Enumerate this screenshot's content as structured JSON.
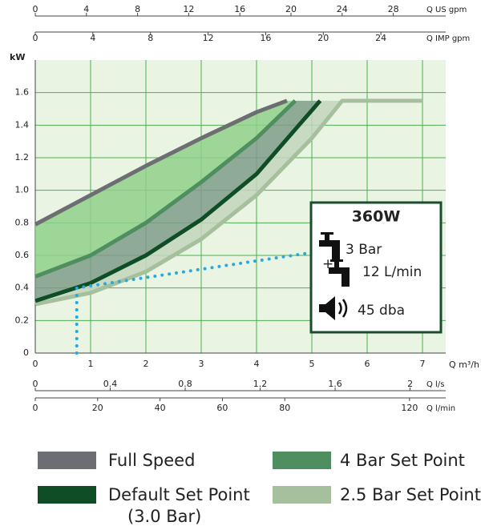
{
  "chart_data": {
    "type": "line",
    "ylabel": "kW",
    "xlabel": "Q m³/h",
    "xlim": [
      0,
      7.42
    ],
    "ylim": [
      0,
      1.8
    ],
    "xticks": [
      0,
      1,
      2,
      3,
      4,
      5,
      6,
      7
    ],
    "yticks": [
      0,
      0.2,
      0.4,
      0.6,
      0.8,
      {
        "value": 1,
        "label": "1.0"
      },
      1.2,
      1.4,
      1.6
    ],
    "grid": true,
    "series": [
      {
        "name": "Full Speed",
        "color": "#6d6e71",
        "x": [
          0,
          1,
          2,
          3,
          4,
          4.55
        ],
        "values": [
          0.79,
          0.97,
          1.15,
          1.32,
          1.48,
          1.55
        ]
      },
      {
        "name": "4 Bar Set Point",
        "color": "#4f8f5f",
        "x": [
          0,
          1,
          2,
          3,
          4,
          4.7
        ],
        "values": [
          0.47,
          0.6,
          0.8,
          1.05,
          1.32,
          1.55
        ]
      },
      {
        "name": "Default Set Point",
        "name_note": "(3.0 Bar)",
        "color": "#0f4d26",
        "x": [
          0,
          1,
          2,
          3,
          4,
          5.15
        ],
        "values": [
          0.32,
          0.43,
          0.6,
          0.82,
          1.1,
          1.55
        ]
      },
      {
        "name": "2.5 Bar Set Point",
        "color": "#a6bf9c",
        "x": [
          0,
          1,
          2,
          3,
          4,
          5,
          5.55,
          7.0
        ],
        "values": [
          0.3,
          0.37,
          0.5,
          0.7,
          0.97,
          1.32,
          1.55,
          1.55
        ]
      }
    ],
    "operating_line": {
      "color": "#29a8e0",
      "x": [
        0.75,
        0.75,
        5.05
      ],
      "values": [
        0,
        0.4,
        0.62
      ]
    },
    "secondary_x_axes": [
      {
        "label": "Q US gpm",
        "position": "top",
        "lim": [
          0,
          32.1
        ],
        "ticks": [
          0,
          4,
          8,
          12,
          16,
          20,
          24,
          28
        ]
      },
      {
        "label": "Q IMP gpm",
        "position": "top",
        "lim": [
          0,
          28.5
        ],
        "ticks": [
          0,
          4,
          8,
          12,
          16,
          20,
          24
        ]
      },
      {
        "label": "Q l/s",
        "position": "bottom",
        "lim": [
          0,
          2.19
        ],
        "ticks": [
          0,
          0.4,
          0.8,
          1.2,
          1.6,
          2
        ]
      },
      {
        "label": "Q l/min",
        "position": "bottom",
        "lim": [
          0,
          131.6
        ],
        "ticks": [
          0,
          20,
          40,
          60,
          80,
          120
        ]
      }
    ],
    "info_box": {
      "title": "360W",
      "pressure": "3 Bar",
      "plus": "+",
      "flow": "12 L/min",
      "noise": "45 dba"
    }
  }
}
